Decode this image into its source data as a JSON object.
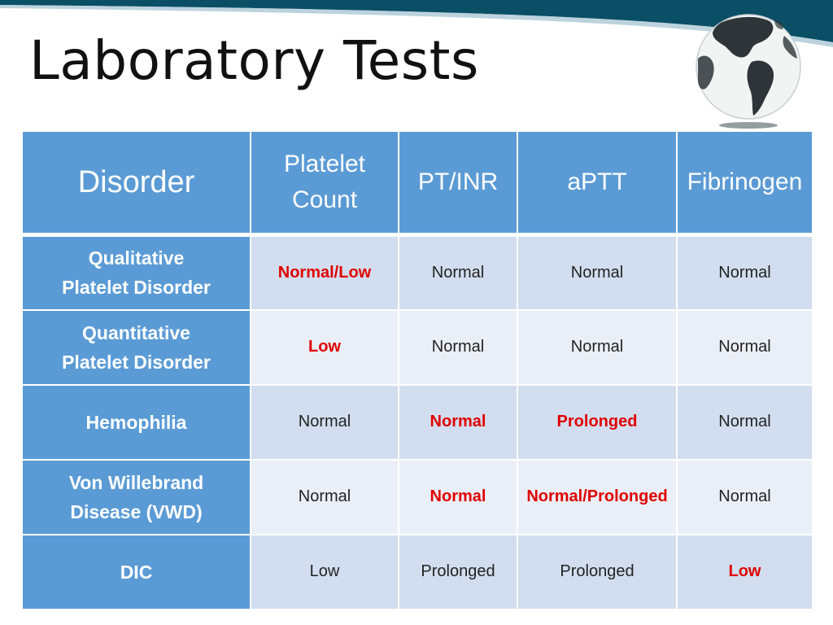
{
  "colors": {
    "header_band": "#0a4f66",
    "table_header": "#5b9bd5",
    "row_odd": "#d2deef",
    "row_even": "#eaeff7",
    "highlight_text": "#e00000"
  },
  "slide": {
    "title": "Laboratory Tests",
    "logo_icon": "globe-icon"
  },
  "table": {
    "headers": [
      {
        "label": "Disorder"
      },
      {
        "label": "Platelet Count"
      },
      {
        "label": "PT/INR"
      },
      {
        "label": "aPTT"
      },
      {
        "label": "Fibrinogen"
      }
    ],
    "rows": [
      {
        "disorder": "Qualitative Platelet Disorder",
        "platelet_count": "Normal/Low",
        "pt_inr": "Normal",
        "aptt": "Normal",
        "fibrinogen": "Normal"
      },
      {
        "disorder": "Quantitative Platelet Disorder",
        "platelet_count": "Low",
        "pt_inr": "Normal",
        "aptt": "Normal",
        "fibrinogen": "Normal"
      },
      {
        "disorder": "Hemophilia",
        "platelet_count": "Normal",
        "pt_inr": "Normal",
        "aptt": "Prolonged",
        "fibrinogen": "Normal"
      },
      {
        "disorder": "Von Willebrand Disease (VWD)",
        "platelet_count": "Normal",
        "pt_inr": "Normal",
        "aptt": "Normal/Prolonged",
        "fibrinogen": "Normal"
      },
      {
        "disorder": "DIC",
        "platelet_count": "Low",
        "pt_inr": "Prolonged",
        "aptt": "Prolonged",
        "fibrinogen": "Low"
      }
    ]
  }
}
